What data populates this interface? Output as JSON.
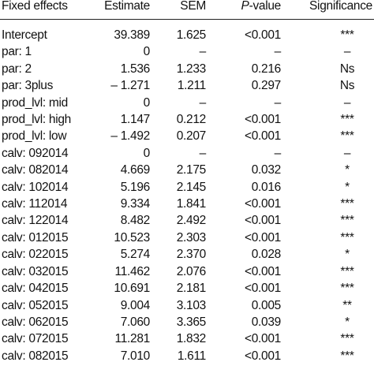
{
  "header": {
    "fixed_effects": "Fixed effects",
    "estimate": "Estimate",
    "sem": "SEM",
    "p_value_p": "P",
    "p_value_rest": "-value",
    "significance": "Significance"
  },
  "rows": [
    {
      "name": "Intercept",
      "estimate": "39.389",
      "sem": "1.625",
      "p": "<0.001",
      "sig": "***"
    },
    {
      "name": "par: 1",
      "estimate": "0",
      "sem": "–",
      "p": "–",
      "sig": "–"
    },
    {
      "name": "par: 2",
      "estimate": "1.536",
      "sem": "1.233",
      "p": "0.216",
      "sig": "Ns"
    },
    {
      "name": "par: 3plus",
      "estimate": "– 1.271",
      "sem": "1.211",
      "p": "0.297",
      "sig": "Ns"
    },
    {
      "name": "prod_lvl: mid",
      "estimate": "0",
      "sem": "–",
      "p": "–",
      "sig": "–"
    },
    {
      "name": "prod_lvl: high",
      "estimate": "1.147",
      "sem": "0.212",
      "p": "<0.001",
      "sig": "***"
    },
    {
      "name": "prod_lvl: low",
      "estimate": "– 1.492",
      "sem": "0.207",
      "p": "<0.001",
      "sig": "***"
    },
    {
      "name": "calv: 092014",
      "estimate": "0",
      "sem": "–",
      "p": "–",
      "sig": "–"
    },
    {
      "name": "calv: 082014",
      "estimate": "4.669",
      "sem": "2.175",
      "p": "0.032",
      "sig": "*"
    },
    {
      "name": "calv: 102014",
      "estimate": "5.196",
      "sem": "2.145",
      "p": "0.016",
      "sig": "*"
    },
    {
      "name": "calv: 112014",
      "estimate": "9.334",
      "sem": "1.841",
      "p": "<0.001",
      "sig": "***"
    },
    {
      "name": "calv: 122014",
      "estimate": "8.482",
      "sem": "2.492",
      "p": "<0.001",
      "sig": "***"
    },
    {
      "name": "calv: 012015",
      "estimate": "10.523",
      "sem": "2.303",
      "p": "<0.001",
      "sig": "***"
    },
    {
      "name": "calv: 022015",
      "estimate": "5.274",
      "sem": "2.370",
      "p": "0.028",
      "sig": "*"
    },
    {
      "name": "calv: 032015",
      "estimate": "11.462",
      "sem": "2.076",
      "p": "<0.001",
      "sig": "***"
    },
    {
      "name": "calv: 042015",
      "estimate": "10.691",
      "sem": "2.181",
      "p": "<0.001",
      "sig": "***"
    },
    {
      "name": "calv: 052015",
      "estimate": "9.004",
      "sem": "3.103",
      "p": "0.005",
      "sig": "**"
    },
    {
      "name": "calv: 062015",
      "estimate": "7.060",
      "sem": "3.365",
      "p": "0.039",
      "sig": "*"
    },
    {
      "name": "calv: 072015",
      "estimate": "11.281",
      "sem": "1.832",
      "p": "<0.001",
      "sig": "***"
    },
    {
      "name": "calv: 082015",
      "estimate": "7.010",
      "sem": "1.611",
      "p": "<0.001",
      "sig": "***"
    }
  ]
}
